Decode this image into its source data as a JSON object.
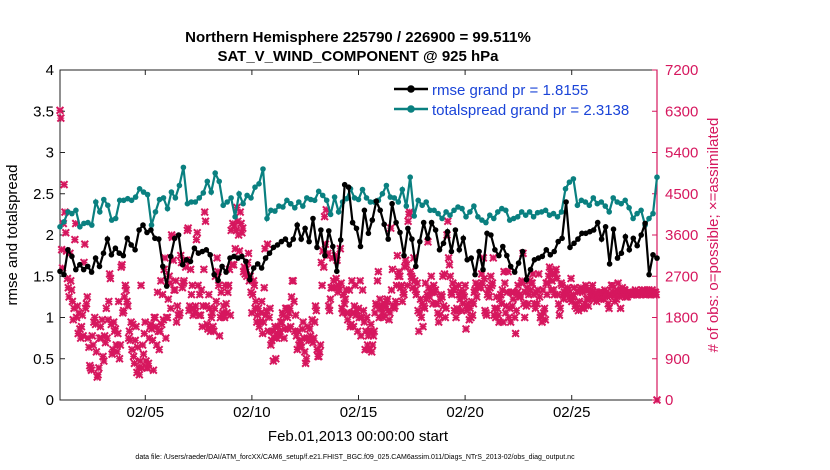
{
  "chart_data": {
    "type": "line",
    "title": [
      "Northern Hemisphere 225790 / 226900 = 99.511%",
      "SAT_V_WIND_COMPONENT @ 925 hPa"
    ],
    "xlabel": "Feb.01,2013 00:00:00 start",
    "ylabel_left": "rmse and totalspread",
    "ylabel_right": "# of obs: o=possible; ×=assimilated",
    "ylim_left": [
      0,
      4
    ],
    "ylim_right": [
      0,
      7200
    ],
    "yticks_left": [
      "0",
      "0.5",
      "1",
      "1.5",
      "2",
      "2.5",
      "3",
      "3.5",
      "4"
    ],
    "yticks_right": [
      "0",
      "900",
      "1800",
      "2700",
      "3600",
      "4500",
      "5400",
      "6300",
      "7200"
    ],
    "xticks": [
      "02/05",
      "02/10",
      "02/15",
      "02/20",
      "02/25"
    ],
    "xtick_days": [
      5,
      10,
      15,
      20,
      25
    ],
    "xlim_days": [
      1,
      29
    ],
    "footnote": "data file: /Users/raeder/DAI/ATM_forcXX/CAM6_setup/f.e21.FHIST_BGC.f09_025.CAM6assim.011/Diags_NTrS_2013-02/obs_diag_output.nc",
    "colors": {
      "rmse": "#000000",
      "spread": "#0a8080",
      "obs": "#d6175e",
      "right_axis": "#d6175e",
      "legend_text": "#1a44d8"
    },
    "series": [
      {
        "name": "rmse",
        "legend": "rmse grand pr = 1.8155",
        "values": [
          1.56,
          1.52,
          1.82,
          1.74,
          1.58,
          1.64,
          1.58,
          1.62,
          1.55,
          1.72,
          1.62,
          1.78,
          1.95,
          1.76,
          1.84,
          1.78,
          1.75,
          1.96,
          1.88,
          1.82,
          2.06,
          2.12,
          2.03,
          2.06,
          1.96,
          1.95,
          1.62,
          1.38,
          1.74,
          1.96,
          2.0,
          1.64,
          1.7,
          1.68,
          1.84,
          1.78,
          1.8,
          1.82,
          1.76,
          1.52,
          1.45,
          1.62,
          1.55,
          1.72,
          1.74,
          1.72,
          1.74,
          1.68,
          1.46,
          1.6,
          1.65,
          1.6,
          1.72,
          1.78,
          1.85,
          1.88,
          1.92,
          1.95,
          1.88,
          1.95,
          2.12,
          1.95,
          2.08,
          1.92,
          2.2,
          1.85,
          2.06,
          1.75,
          2.05,
          1.86,
          1.56,
          1.94,
          2.61,
          2.58,
          2.15,
          2.08,
          1.86,
          2.3,
          2.02,
          2.18,
          2.41,
          2.3,
          2.13,
          1.95,
          2.38,
          2.15,
          2.03,
          1.75,
          2.08,
          1.95,
          1.62,
          1.92,
          2.15,
          1.96,
          2.15,
          2.06,
          1.82,
          1.9,
          2.04,
          1.8,
          2.06,
          1.82,
          1.96,
          1.7,
          1.72,
          1.52,
          1.8,
          1.58,
          2.02,
          2.0,
          1.82,
          1.75,
          1.86,
          1.75,
          1.62,
          1.55,
          1.66,
          1.8,
          1.46,
          1.58,
          1.7,
          1.72,
          1.74,
          1.82,
          1.76,
          1.8,
          1.92,
          1.96,
          2.4,
          1.85,
          1.9,
          1.95,
          2.02,
          2.02,
          2.04,
          2.06,
          2.15,
          1.95,
          2.1,
          1.65,
          2.07,
          1.72,
          1.78,
          1.98,
          1.82,
          1.96,
          1.87,
          2.0,
          2.14,
          1.52,
          1.76,
          1.72
        ]
      },
      {
        "name": "totalspread",
        "legend": "totalspread grand pr = 2.3138",
        "values": [
          2.1,
          2.16,
          2.28,
          2.26,
          2.3,
          2.1,
          2.14,
          2.15,
          2.12,
          2.4,
          2.28,
          2.43,
          2.36,
          2.18,
          2.2,
          2.42,
          2.42,
          2.44,
          2.42,
          2.46,
          2.56,
          2.52,
          2.49,
          2.12,
          2.28,
          2.43,
          2.45,
          2.32,
          2.52,
          2.45,
          2.6,
          2.82,
          2.38,
          2.4,
          2.4,
          2.45,
          2.51,
          2.65,
          2.52,
          2.75,
          2.65,
          2.36,
          2.4,
          2.45,
          2.22,
          2.5,
          2.38,
          2.48,
          2.45,
          2.58,
          2.62,
          2.8,
          2.2,
          2.3,
          2.29,
          2.35,
          2.34,
          2.42,
          2.38,
          2.33,
          2.4,
          2.35,
          2.45,
          2.43,
          2.42,
          2.53,
          2.48,
          2.42,
          2.25,
          2.46,
          2.28,
          2.4,
          2.44,
          2.56,
          2.45,
          2.43,
          2.55,
          2.45,
          2.4,
          2.4,
          2.42,
          2.5,
          2.6,
          2.46,
          2.45,
          2.4,
          2.55,
          2.35,
          2.7,
          2.23,
          2.42,
          2.36,
          2.4,
          2.3,
          2.3,
          2.26,
          2.2,
          2.28,
          2.24,
          2.3,
          2.34,
          2.32,
          2.22,
          2.28,
          2.35,
          2.22,
          2.18,
          2.15,
          2.24,
          2.2,
          2.28,
          2.32,
          2.3,
          2.18,
          2.2,
          2.22,
          2.28,
          2.24,
          2.28,
          2.22,
          2.27,
          2.28,
          2.3,
          2.24,
          2.26,
          2.22,
          2.28,
          2.56,
          2.64,
          2.68,
          2.36,
          2.42,
          2.4,
          2.36,
          2.45,
          2.38,
          2.4,
          2.35,
          2.28,
          2.45,
          2.4,
          2.38,
          2.42,
          2.33,
          2.2,
          2.26,
          2.3,
          2.12,
          2.2,
          2.26,
          2.7
        ]
      }
    ],
    "obs_assimilated": [
      6320,
      6150,
      3280,
      2880,
      3850,
      4700,
      4100,
      3650,
      3250,
      2650,
      2450,
      2250,
      3200,
      2600,
      2400,
      2150,
      1750,
      2000,
      3500,
      3850,
      1800,
      2050,
      1450,
      1900,
      1550,
      1350,
      1600,
      1850,
      1400,
      3000,
      3400,
      2000,
      2100,
      2250,
      1350,
      1150,
      750,
      700,
      650,
      1400,
      1200,
      1700,
      1800,
      1650,
      1050,
      500,
      550,
      700,
      1350,
      1600,
      1350,
      1750,
      950,
      850,
      1400,
      1250,
      2000,
      1350,
      1750,
      2150,
      2750,
      2650,
      1650,
      1000,
      1100,
      1700,
      1500,
      1550,
      1200,
      1050,
      1450,
      2150,
      900,
      1200,
      2900,
      2950,
      1900,
      1950,
      2250,
      2500,
      2400,
      2150,
      2050,
      1350,
      1500,
      1300,
      1700,
      1100,
      1650,
      950,
      800,
      1300,
      1600,
      600,
      1150,
      700,
      550,
      850,
      2500,
      700,
      1200,
      1000,
      1450,
      1700,
      850,
      700,
      700,
      800,
      1350,
      1600,
      1650,
      1550,
      1300,
      650,
      1800,
      1800,
      1600,
      1200,
      2350,
      1500,
      1100,
      1500,
      2600,
      1650,
      2300,
      1750,
      2850,
      3100,
      1350,
      1800,
      1800,
      2200,
      2700,
      2550,
      2000,
      3600,
      3550,
      3050,
      2400,
      2400,
      2600,
      1700,
      2050,
      1850,
      1850,
      1900,
      3150,
      3000,
      2450,
      2550,
      2600,
      3050,
      2900,
      3050,
      3700,
      3750,
      1950,
      2050,
      2850,
      2300,
      2500,
      1850,
      2000,
      1900,
      2050,
      3500,
      3650,
      2500,
      1850,
      2300,
      1850,
      2400,
      1600,
      2050,
      2850,
      4100,
      3900,
      2050,
      1650,
      1550,
      2300,
      2000,
      1500,
      1800,
      1900,
      1600,
      1500,
      2000,
      2700,
      2150,
      3100,
      2800,
      2500,
      1400,
      1800,
      2350,
      1850,
      1900,
      2050,
      1800,
      2500,
      2100,
      1900,
      2350,
      2500,
      2850,
      1850,
      3700,
      2950,
      3850,
      2950,
      3800,
      3300,
      3700,
      4200,
      3900,
      3600,
      3250,
      4100,
      3850,
      3650,
      3750,
      2800,
      2900,
      2750,
      2850,
      2700,
      3000,
      3200,
      2600,
      2700,
      2350,
      1900,
      2300,
      2600,
      2500,
      2000,
      2150,
      1700,
      1850,
      2000,
      1600,
      1700,
      1900,
      2150,
      1450,
      1700,
      2450,
      3300,
      1850,
      1950,
      3400,
      1500,
      1800,
      2000,
      1200,
      1300,
      1500,
      850,
      1350,
      1600,
      900,
      1350,
      1450,
      1600,
      1400,
      1500,
      1700,
      1700,
      1900,
      1850,
      1350,
      1550,
      2000,
      2000,
      1800,
      1550,
      1900,
      2000,
      1600,
      2250,
      2600,
      2600,
      2150,
      1500,
      1850,
      1400,
      1100,
      1500,
      1200,
      1300,
      1250,
      1150,
      1550,
      1700,
      1350,
      1050,
      800,
      900,
      1350,
      1600,
      1300,
      1550,
      1400,
      1300,
      1750,
      1250,
      1350,
      1700,
      2050,
      1950,
      1100,
      950,
      950,
      1050,
      1200,
      3000,
      2500,
      3250,
      2900,
      4000,
      3400,
      4150,
      3150,
      3200,
      2050,
      1950,
      2200,
      2450,
      2450,
      3100,
      2600,
      2450,
      3150,
      2650,
      3050,
      2350,
      2500,
      2400,
      3300,
      2550,
      2000,
      1900,
      2300,
      2100,
      2200,
      2400,
      1900,
      1750,
      1900,
      2400,
      1600,
      1650,
      2600,
      1900,
      1600,
      2050,
      2500,
      1850,
      1950,
      1500,
      2000,
      1800,
      2600,
      1400,
      1800,
      2400,
      1950,
      1700,
      1100,
      1500,
      1800,
      1200,
      1400,
      1100,
      1500,
      1650,
      1050,
      1200,
      1400,
      1500,
      1900,
      2100,
      2050,
      2600,
      2800,
      1800,
      2200,
      2050,
      2000,
      1900,
      1800,
      2050,
      2100,
      2050,
      2150,
      2200,
      1950,
      1750,
      1900,
      3750,
      2400,
      2850,
      2050,
      2000,
      2050,
      2150,
      2500,
      3150,
      2700,
      2800,
      2700,
      2450,
      2500,
      2150,
      2350,
      2300,
      2900,
      3050,
      2950,
      2500,
      3900,
      4050,
      4100,
      2800,
      2700,
      2650,
      2450,
      3100,
      2600,
      2400,
      2300,
      2550,
      1950,
      1500,
      1900,
      2200,
      1800,
      2100,
      1600,
      2050,
      2000,
      2550,
      2200,
      2300,
      3450,
      2450,
      2250,
      2350,
      2700,
      2350,
      2100,
      2500,
      2350,
      2400,
      2100,
      2100,
      1900,
      1700,
      1850,
      2200,
      2300,
      2250,
      2700,
      2050,
      2750,
      1800,
      2000,
      3600,
      3900,
      3100,
      2950,
      2700,
      2350,
      2300,
      2550,
      2400,
      1950,
      2450,
      1800,
      2000,
      1950,
      2500,
      2300,
      2200,
      2350,
      1950,
      2100,
      2350,
      2250,
      2500,
      1550,
      1950,
      2050,
      2100,
      1750,
      2000,
      1800,
      2150,
      1850,
      2100,
      2350,
      2400,
      2550,
      2250,
      2500,
      2450,
      2500,
      2500,
      2450,
      2750,
      2550,
      3100,
      2650,
      1950,
      1900,
      1850,
      2300,
      2400,
      2250,
      2450,
      2700,
      2500,
      2550,
      3100,
      1850,
      2000,
      1800,
      2250,
      2000,
      1850,
      1700,
      2200,
      2300,
      2100,
      2400,
      1700,
      2800,
      2550,
      1900,
      2050,
      2350,
      2800,
      1800,
      2000,
      1700,
      2350,
      2050,
      2200,
      2350,
      1800,
      1450,
      1950,
      2350,
      2500,
      2250,
      2300,
      2250,
      2550,
      2600,
      3200,
      2100,
      1800,
      2350,
      2050,
      2450,
      2100,
      2300,
      2600,
      2400,
      2550,
      2550,
      2750,
      2300,
      2100,
      2000,
      2350,
      2100,
      2400,
      2750,
      2250,
      1800,
      1850,
      1700,
      2400,
      1900,
      2000,
      1750,
      2550,
      2300,
      2550,
      2700,
      2900,
      2800,
      2400,
      2600,
      2750,
      2400,
      2300,
      2750,
      2850,
      2650,
      2300,
      2100,
      1850,
      2000,
      2550,
      2500,
      2300,
      2200,
      2350,
      2300,
      2400,
      2350,
      2450,
      2400,
      2250,
      2200,
      2650,
      2150,
      2250,
      2300,
      2450,
      2050,
      2100,
      2000,
      2350,
      1950,
      2150,
      2400,
      2450,
      2000,
      2350,
      2400,
      2000,
      2100,
      2500,
      2200,
      2400,
      2050,
      2200,
      2300,
      2400,
      2350,
      2500,
      2250,
      2200,
      2300,
      2350,
      2150,
      2250,
      2300,
      2250,
      2350,
      2200,
      2350,
      2350,
      2300,
      2200,
      2400,
      2300,
      2350,
      2250,
      2100,
      2000,
      2300,
      2300,
      2500,
      2500,
      2350,
      2300,
      2150,
      2350,
      2200,
      2400,
      2550,
      2300,
      2250,
      2000,
      2400,
      2450,
      2300,
      2400,
      2400,
      2250,
      2300,
      2250,
      2300,
      2350,
      2350,
      2350,
      2300,
      2300,
      2350,
      2300,
      2350,
      2400,
      2300,
      2300,
      2300,
      2350,
      2350,
      2350,
      2300,
      2400,
      2350,
      2350,
      2400,
      2300,
      2300,
      2350,
      2350,
      2400,
      2300,
      2350,
      2300,
      2400,
      2350,
      2300,
      2350,
      2350,
      2300,
      0
    ]
  }
}
